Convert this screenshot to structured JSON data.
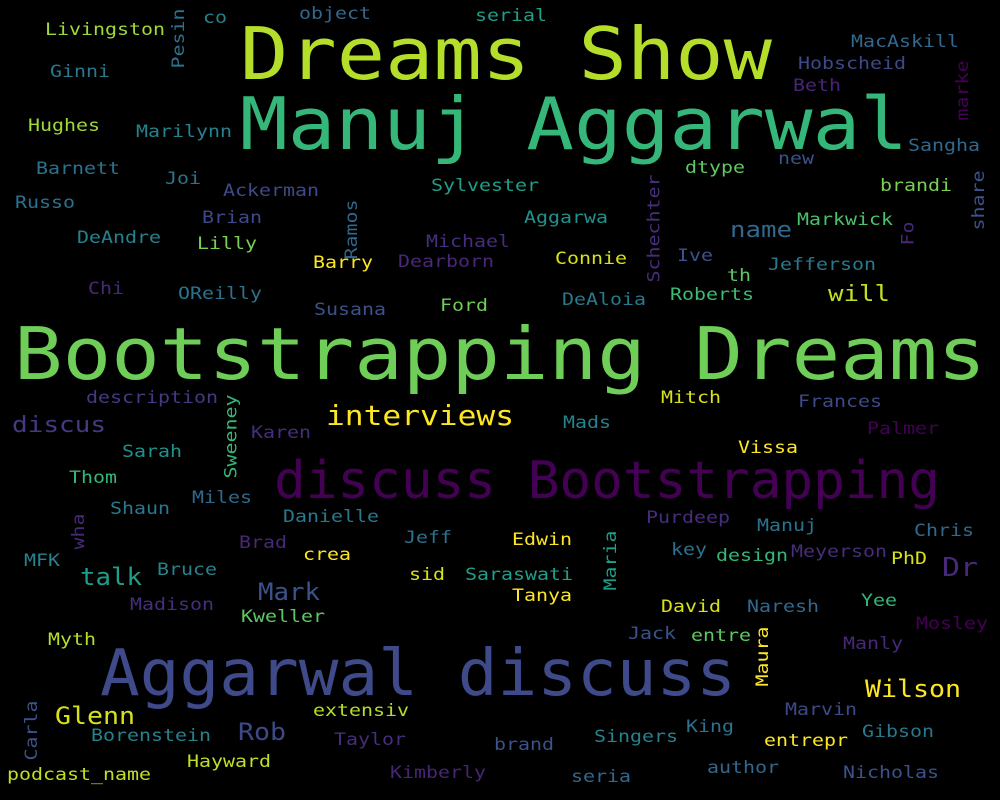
{
  "words": [
    {
      "text": "Bootstrapping Dreams",
      "color": "#6ece58"
    },
    {
      "text": "Manuj Aggarwal",
      "color": "#35b779"
    },
    {
      "text": "Dreams Show",
      "color": "#b5de2b"
    },
    {
      "text": "Aggarwal discuss",
      "color": "#3e4a89"
    },
    {
      "text": "discuss Bootstrapping",
      "color": "#440154"
    },
    {
      "text": "interviews",
      "color": "#fde725"
    },
    {
      "text": "Wilson",
      "color": "#fde725"
    },
    {
      "text": "Glenn",
      "color": "#d8e219"
    },
    {
      "text": "Mark",
      "color": "#3b528b"
    },
    {
      "text": "Rob",
      "color": "#3e4989"
    },
    {
      "text": "talk",
      "color": "#1f9e89"
    },
    {
      "text": "Dr",
      "color": "#482878"
    },
    {
      "text": "name",
      "color": "#31688e"
    },
    {
      "text": "will",
      "color": "#c2df23"
    },
    {
      "text": "discus",
      "color": "#443983"
    },
    {
      "text": "Livingston",
      "color": "#a0da39"
    },
    {
      "text": "co",
      "color": "#26828e"
    },
    {
      "text": "object",
      "color": "#31688e"
    },
    {
      "text": "serial",
      "color": "#1f9e89"
    },
    {
      "text": "MacAskill",
      "color": "#31688e"
    },
    {
      "text": "Hobscheid",
      "color": "#3e4989"
    },
    {
      "text": "Ginni",
      "color": "#2a788e"
    },
    {
      "text": "Beth",
      "color": "#482576"
    },
    {
      "text": "Hughes",
      "color": "#a0da39"
    },
    {
      "text": "Marilynn",
      "color": "#26828e"
    },
    {
      "text": "Sangha",
      "color": "#31688e"
    },
    {
      "text": "Barnett",
      "color": "#2c728e"
    },
    {
      "text": "Joi",
      "color": "#2c728e"
    },
    {
      "text": "new",
      "color": "#3b528b"
    },
    {
      "text": "dtype",
      "color": "#5ec962"
    },
    {
      "text": "Sylvester",
      "color": "#1f9e89"
    },
    {
      "text": "brandi",
      "color": "#7ad151"
    },
    {
      "text": "Ackerman",
      "color": "#3e4989"
    },
    {
      "text": "Russo",
      "color": "#2c728e"
    },
    {
      "text": "Aggarwa",
      "color": "#21918c"
    },
    {
      "text": "Markwick",
      "color": "#4ac16d"
    },
    {
      "text": "Brian",
      "color": "#3e4989"
    },
    {
      "text": "Lilly",
      "color": "#7ad151"
    },
    {
      "text": "DeAndre",
      "color": "#26828e"
    },
    {
      "text": "Michael",
      "color": "#472d7b"
    },
    {
      "text": "Ive",
      "color": "#3b528b"
    },
    {
      "text": "Jefferson",
      "color": "#2a788e"
    },
    {
      "text": "Barry",
      "color": "#fde725"
    },
    {
      "text": "Dearborn",
      "color": "#482878"
    },
    {
      "text": "Connie",
      "color": "#d8e219"
    },
    {
      "text": "th",
      "color": "#5ec962"
    },
    {
      "text": "Chi",
      "color": "#482878"
    },
    {
      "text": "OReilly",
      "color": "#2c728e"
    },
    {
      "text": "Susana",
      "color": "#3b528b"
    },
    {
      "text": "Ford",
      "color": "#6ece58"
    },
    {
      "text": "DeAloia",
      "color": "#2a788e"
    },
    {
      "text": "Roberts",
      "color": "#3dbc74"
    },
    {
      "text": "description",
      "color": "#443983"
    },
    {
      "text": "Mitch",
      "color": "#d8e219"
    },
    {
      "text": "Frances",
      "color": "#3e4a89"
    },
    {
      "text": "Mads",
      "color": "#26828e"
    },
    {
      "text": "Karen",
      "color": "#472d7b"
    },
    {
      "text": "Palmer",
      "color": "#440154"
    },
    {
      "text": "Vissa",
      "color": "#fde725"
    },
    {
      "text": "Sarah",
      "color": "#21918c"
    },
    {
      "text": "Thom",
      "color": "#35b779"
    },
    {
      "text": "Miles",
      "color": "#31688e"
    },
    {
      "text": "Shaun",
      "color": "#2a788e"
    },
    {
      "text": "Danielle",
      "color": "#2a788e"
    },
    {
      "text": "Purdeep",
      "color": "#472d7b"
    },
    {
      "text": "Manuj",
      "color": "#2c728e"
    },
    {
      "text": "Chris",
      "color": "#31688e"
    },
    {
      "text": "MFK",
      "color": "#26828e"
    },
    {
      "text": "Brad",
      "color": "#482878"
    },
    {
      "text": "crea",
      "color": "#fde725"
    },
    {
      "text": "Jeff",
      "color": "#2c728e"
    },
    {
      "text": "Edwin",
      "color": "#fde725"
    },
    {
      "text": "key",
      "color": "#2c728e"
    },
    {
      "text": "design",
      "color": "#35b779"
    },
    {
      "text": "Meyerson",
      "color": "#472d7b"
    },
    {
      "text": "PhD",
      "color": "#d8e219"
    },
    {
      "text": "Bruce",
      "color": "#26828e"
    },
    {
      "text": "sid",
      "color": "#d8e219"
    },
    {
      "text": "Saraswati",
      "color": "#1f9e89"
    },
    {
      "text": "Tanya",
      "color": "#fde725"
    },
    {
      "text": "Madison",
      "color": "#472d7b"
    },
    {
      "text": "Kweller",
      "color": "#5ec962"
    },
    {
      "text": "David",
      "color": "#d8e219"
    },
    {
      "text": "Naresh",
      "color": "#31688e"
    },
    {
      "text": "Yee",
      "color": "#35b779"
    },
    {
      "text": "Mosley",
      "color": "#440154"
    },
    {
      "text": "Myth",
      "color": "#b5de2b"
    },
    {
      "text": "Jack",
      "color": "#3b528b"
    },
    {
      "text": "entre",
      "color": "#5ec962"
    },
    {
      "text": "Manly",
      "color": "#482878"
    },
    {
      "text": "extensiv",
      "color": "#b5de2b"
    },
    {
      "text": "King",
      "color": "#2c728e"
    },
    {
      "text": "Marvin",
      "color": "#3e4989"
    },
    {
      "text": "Borenstein",
      "color": "#26828e"
    },
    {
      "text": "Taylor",
      "color": "#472d7b"
    },
    {
      "text": "brand",
      "color": "#3b528b"
    },
    {
      "text": "Singers",
      "color": "#26828e"
    },
    {
      "text": "entrepr",
      "color": "#fde725"
    },
    {
      "text": "Gibson",
      "color": "#2a788e"
    },
    {
      "text": "Hayward",
      "color": "#c2df23"
    },
    {
      "text": "podcast_name",
      "color": "#c2df23"
    },
    {
      "text": "Kimberly",
      "color": "#482576"
    },
    {
      "text": "seria",
      "color": "#31688e"
    },
    {
      "text": "author",
      "color": "#31688e"
    },
    {
      "text": "Nicholas",
      "color": "#3b528b"
    },
    {
      "text": "Pesin",
      "color": "#2c728e"
    },
    {
      "text": "marke",
      "color": "#440154"
    },
    {
      "text": "share",
      "color": "#3b528b"
    },
    {
      "text": "Fo",
      "color": "#482878"
    },
    {
      "text": "Schechter",
      "color": "#472d7b"
    },
    {
      "text": "Ramos",
      "color": "#31688e"
    },
    {
      "text": "Sweeney",
      "color": "#35b779"
    },
    {
      "text": "wha",
      "color": "#482878"
    },
    {
      "text": "Maria",
      "color": "#1f9e89"
    },
    {
      "text": "Maura",
      "color": "#fde725"
    },
    {
      "text": "Carla",
      "color": "#3b528b"
    }
  ]
}
